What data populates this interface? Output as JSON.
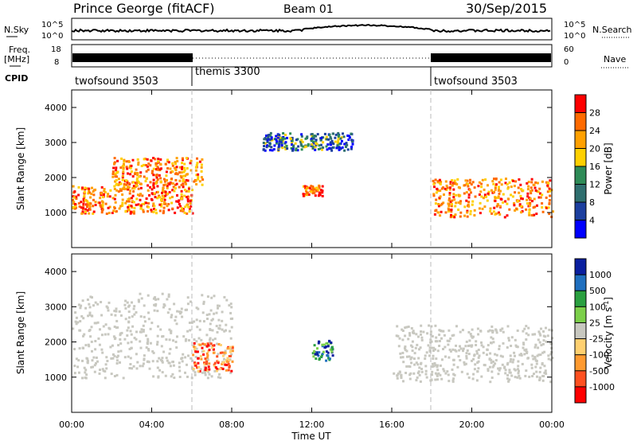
{
  "header": {
    "title": "Prince George (fitACF)",
    "beam": "Beam 01",
    "date": "30/Sep/2015"
  },
  "noise_panel": {
    "left_label": "N.Sky",
    "right_label": "N.Search",
    "left_ticks": [
      "10^5",
      "10^0"
    ],
    "right_ticks": [
      "10^5",
      "10^0"
    ]
  },
  "freq_panel": {
    "left_label_1": "Freq.",
    "left_label_2": "[MHz]",
    "right_label": "Nave",
    "left_ticks": [
      "18",
      "8"
    ],
    "right_ticks": [
      "60",
      "0"
    ]
  },
  "cpid": {
    "label": "CPID",
    "segments": [
      {
        "name": "twofsound 3503",
        "start_hour": 0
      },
      {
        "name": "themis 3300",
        "start_hour": 6
      },
      {
        "name": "twofsound 3503",
        "start_hour": 18
      }
    ]
  },
  "x_axis": {
    "label": "Time UT",
    "ticks": [
      "00:00",
      "04:00",
      "08:00",
      "12:00",
      "16:00",
      "20:00",
      "00:00"
    ]
  },
  "chart_data": [
    {
      "type": "heatmap",
      "name": "power",
      "ylabel": "Slant Range [km]",
      "ylim": [
        0,
        4500
      ],
      "yticks": [
        1000,
        2000,
        3000,
        4000
      ],
      "xlim_hours": [
        0,
        24
      ],
      "colorbar_label": "Power [dB]",
      "colorbar_ticks": [
        "28",
        "24",
        "20",
        "16",
        "12",
        "8",
        "4"
      ],
      "colorbar_colors": [
        "#ff0000",
        "#ff6a00",
        "#ffa000",
        "#ffd000",
        "#2e8b57",
        "#2f6f6f",
        "#1c3f9f",
        "#0000ff"
      ],
      "features": [
        {
          "hours": [
            0,
            6
          ],
          "range_km": [
            1000,
            1800
          ],
          "level": "high"
        },
        {
          "hours": [
            2,
            6.5
          ],
          "range_km": [
            1800,
            2600
          ],
          "level": "high"
        },
        {
          "hours": [
            18,
            24
          ],
          "range_km": [
            900,
            2000
          ],
          "level": "high"
        },
        {
          "hours": [
            11.5,
            12.5
          ],
          "range_km": [
            1500,
            1800
          ],
          "level": "high"
        },
        {
          "hours": [
            9.5,
            14
          ],
          "range_km": [
            2800,
            3300
          ],
          "level": "low"
        }
      ]
    },
    {
      "type": "heatmap",
      "name": "velocity",
      "ylabel": "Slant Range [km]",
      "ylim": [
        0,
        4500
      ],
      "yticks": [
        1000,
        2000,
        3000,
        4000
      ],
      "xlim_hours": [
        0,
        24
      ],
      "colorbar_label": "Velocity [m s^-1]",
      "colorbar_ticks": [
        "1000",
        "500",
        "100",
        "25",
        "-25",
        "-100",
        "-500",
        "-1000"
      ],
      "colorbar_colors": [
        "#0a1f9f",
        "#1f6fbf",
        "#2aa040",
        "#7cd04a",
        "#c8c8c0",
        "#ffd070",
        "#ff9a30",
        "#ff5020",
        "#ff0000"
      ],
      "features": [
        {
          "hours": [
            0,
            8
          ],
          "range_km": [
            1000,
            3400
          ],
          "level": "ground"
        },
        {
          "hours": [
            6,
            8
          ],
          "range_km": [
            1200,
            2000
          ],
          "level": "negative"
        },
        {
          "hours": [
            12,
            13
          ],
          "range_km": [
            1500,
            2100
          ],
          "level": "positive"
        },
        {
          "hours": [
            16,
            24
          ],
          "range_km": [
            900,
            2500
          ],
          "level": "ground"
        }
      ]
    }
  ]
}
